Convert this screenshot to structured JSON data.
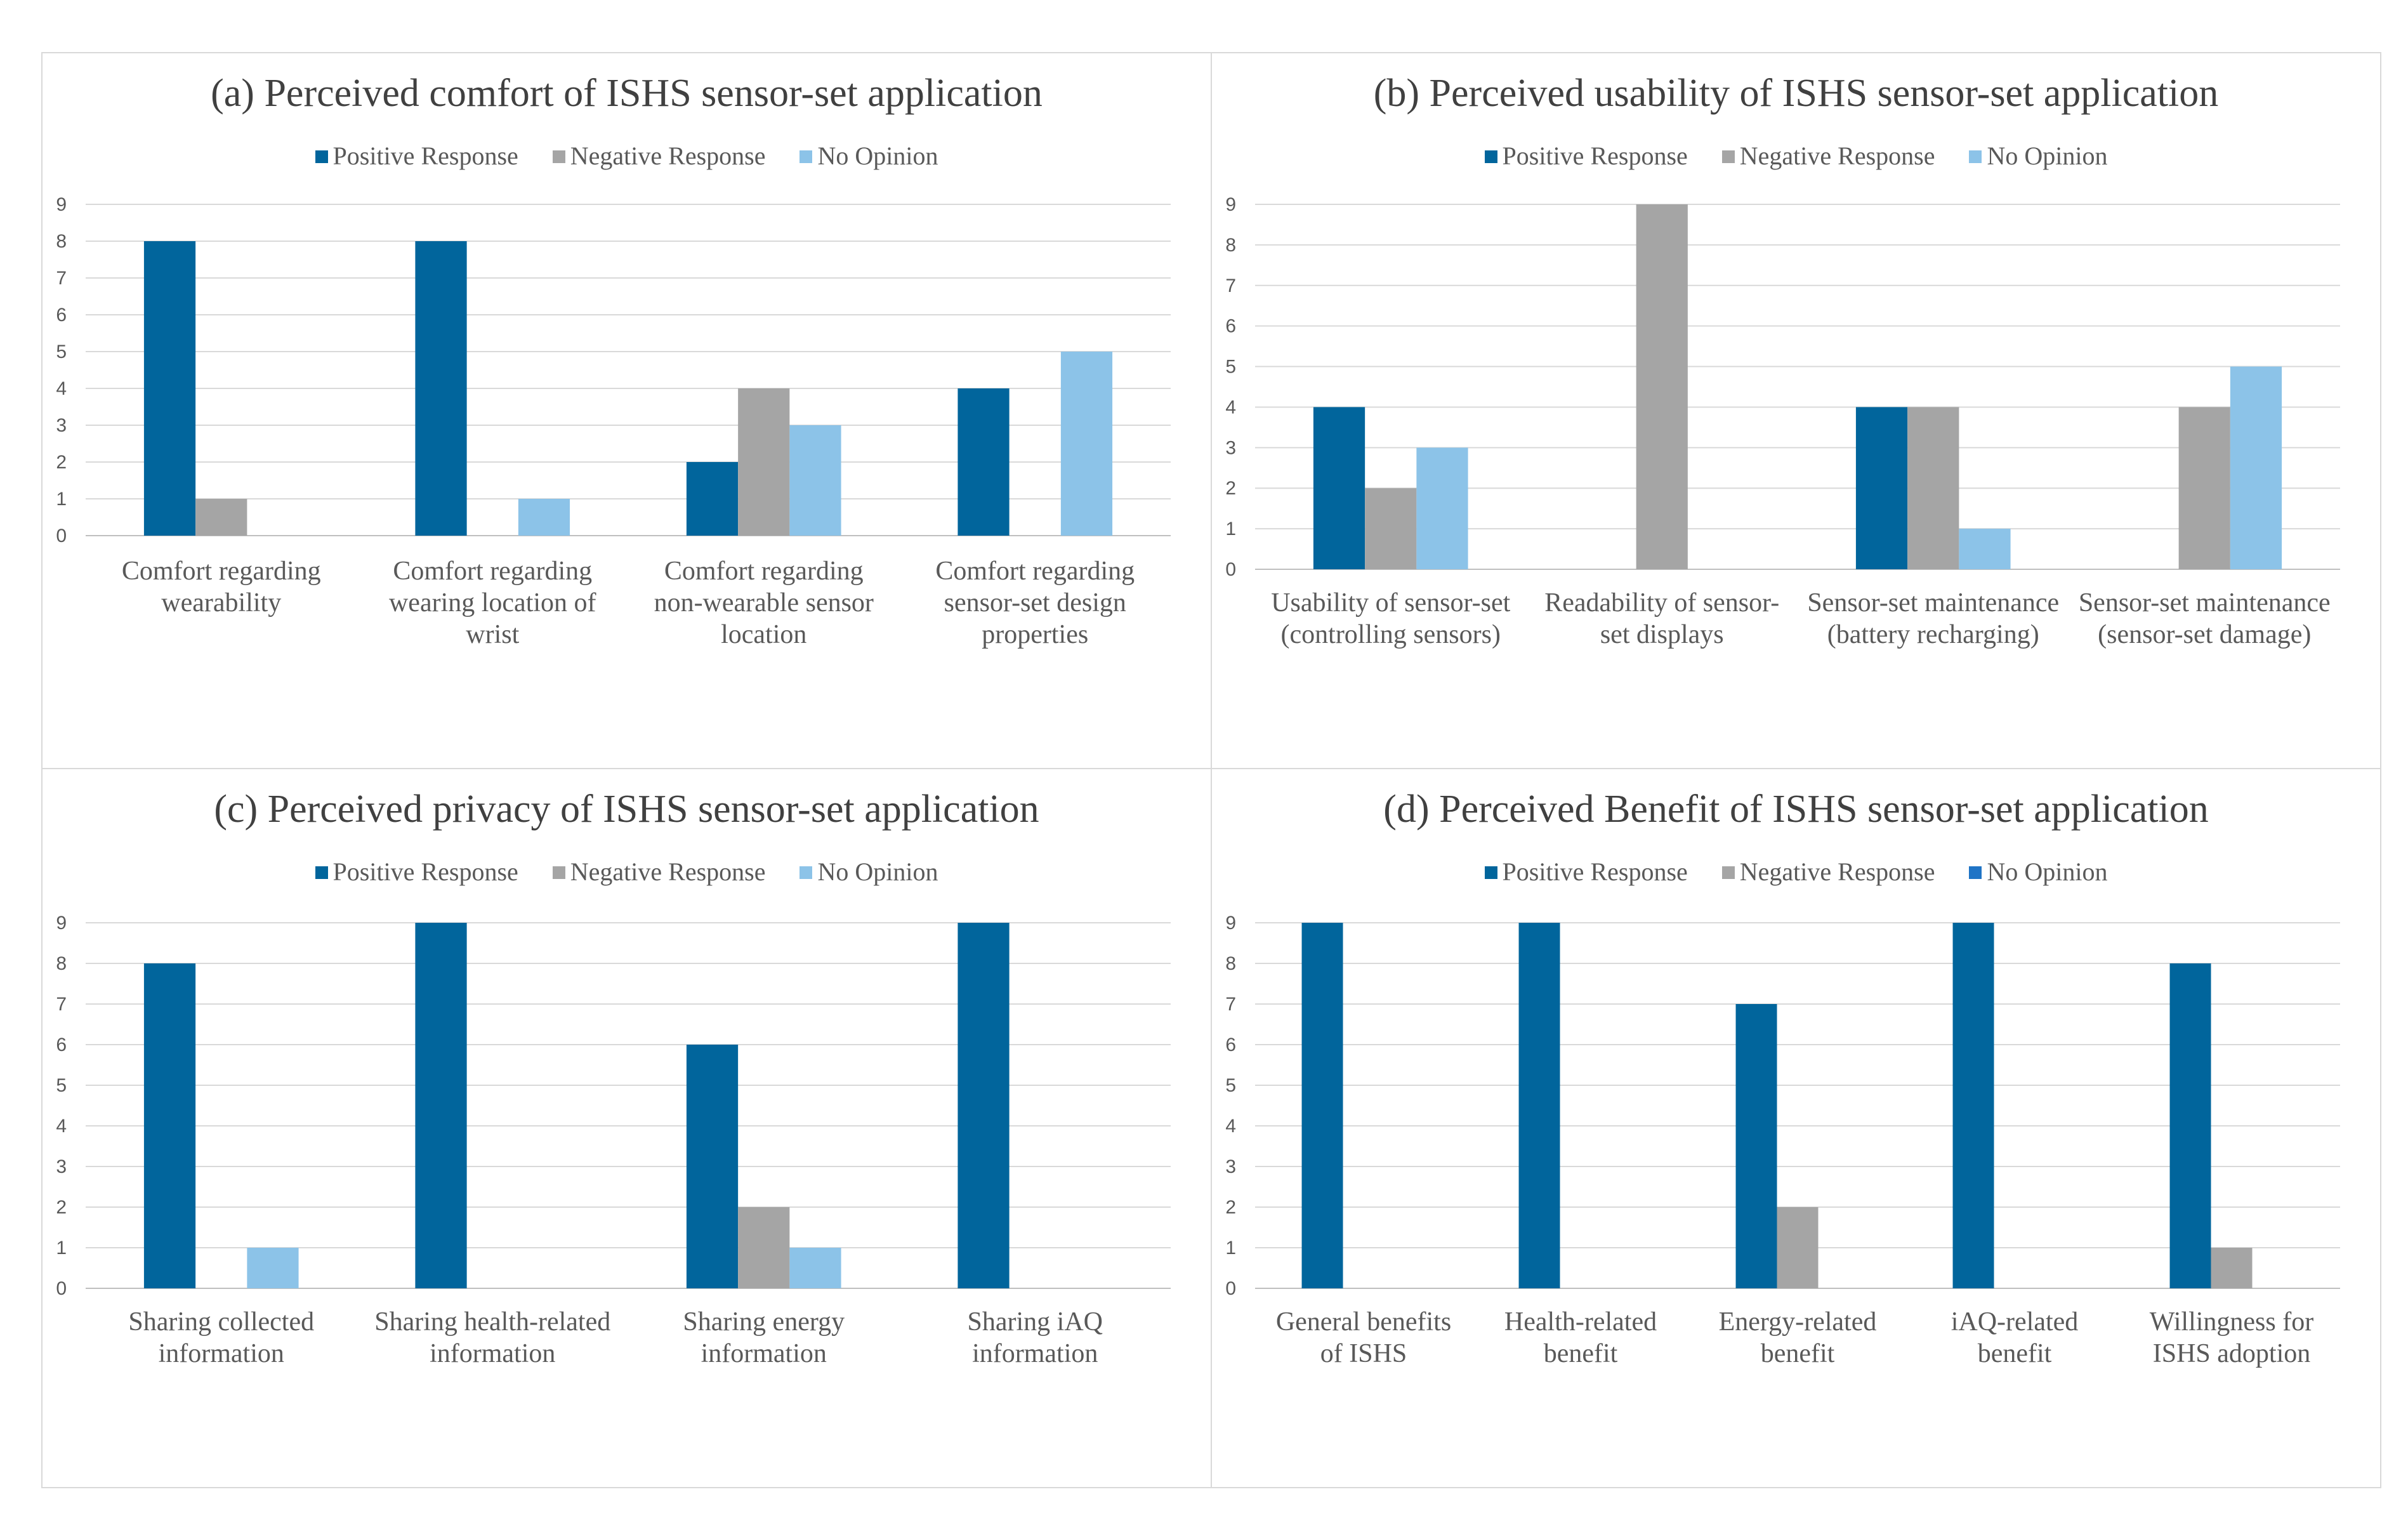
{
  "chart_data": [
    {
      "type": "bar",
      "title": "(a) Perceived comfort of ISHS sensor-set application",
      "legend_position": "top-center",
      "ylim": [
        0,
        9
      ],
      "yticks": [
        0,
        1,
        2,
        3,
        4,
        5,
        6,
        7,
        8,
        9
      ],
      "ytick_labels": [
        "0",
        "1",
        "2",
        "3",
        "4",
        "5",
        "6",
        "7",
        "8",
        "9"
      ],
      "categories": [
        [
          "Comfort regarding",
          "wearability"
        ],
        [
          "Comfort regarding",
          "wearing location of",
          "wrist"
        ],
        [
          "Comfort regarding",
          "non-wearable sensor",
          "location"
        ],
        [
          "Comfort regarding",
          "sensor-set design",
          "properties"
        ]
      ],
      "series": [
        {
          "name": "Positive Response",
          "color": "#01659c",
          "values": [
            8,
            8,
            2,
            4
          ]
        },
        {
          "name": "Negative Response",
          "color": "#a5a5a5",
          "values": [
            1,
            0,
            4,
            0
          ]
        },
        {
          "name": "No Opinion",
          "color": "#8cc3e8",
          "values": [
            0,
            1,
            3,
            5
          ]
        }
      ]
    },
    {
      "type": "bar",
      "title": "(b) Perceived usability of ISHS sensor-set application",
      "legend_position": "top-center",
      "ylim": [
        0,
        9
      ],
      "yticks": [
        0,
        1,
        2,
        3,
        4,
        5,
        6,
        7,
        8,
        9
      ],
      "ytick_labels": [
        "0",
        "1",
        "2",
        "3",
        "4",
        "5",
        "6",
        "7",
        "8",
        "9"
      ],
      "categories": [
        [
          "Usability of sensor-set",
          "(controlling sensors)"
        ],
        [
          "Readability of sensor-",
          "set displays"
        ],
        [
          "Sensor-set maintenance",
          "(battery recharging)"
        ],
        [
          "Sensor-set maintenance",
          "(sensor-set damage)"
        ]
      ],
      "series": [
        {
          "name": "Positive Response",
          "color": "#01659c",
          "values": [
            4,
            0,
            4,
            0
          ]
        },
        {
          "name": "Negative Response",
          "color": "#a5a5a5",
          "values": [
            2,
            9,
            4,
            4
          ]
        },
        {
          "name": "No Opinion",
          "color": "#8cc3e8",
          "values": [
            3,
            0,
            1,
            5
          ]
        }
      ]
    },
    {
      "type": "bar",
      "title": "(c) Perceived privacy of ISHS sensor-set application",
      "legend_position": "top-center",
      "ylim": [
        0,
        9
      ],
      "yticks": [
        0,
        1,
        2,
        3,
        4,
        5,
        6,
        7,
        8,
        9
      ],
      "ytick_labels": [
        "0",
        "1",
        "2",
        "3",
        "4",
        "5",
        "6",
        "7",
        "8",
        "9"
      ],
      "categories": [
        [
          "Sharing collected",
          "information"
        ],
        [
          "Sharing health-related",
          "information"
        ],
        [
          "Sharing energy",
          "information"
        ],
        [
          "Sharing iAQ",
          "information"
        ]
      ],
      "series": [
        {
          "name": "Positive Response",
          "color": "#01659c",
          "values": [
            8,
            9,
            6,
            9
          ]
        },
        {
          "name": "Negative Response",
          "color": "#a5a5a5",
          "values": [
            0,
            0,
            2,
            0
          ]
        },
        {
          "name": "No Opinion",
          "color": "#8cc3e8",
          "values": [
            1,
            0,
            1,
            0
          ]
        }
      ]
    },
    {
      "type": "bar",
      "title": "(d) Perceived Benefit of ISHS sensor-set application",
      "legend_position": "top-center",
      "ylim": [
        0,
        9
      ],
      "yticks": [
        0,
        1,
        2,
        3,
        4,
        5,
        6,
        7,
        8,
        9
      ],
      "ytick_labels": [
        "0",
        "1",
        "2",
        "3",
        "4",
        "5",
        "6",
        "7",
        "8",
        "9"
      ],
      "categories": [
        [
          "General benefits",
          "of ISHS"
        ],
        [
          "Health-related",
          "benefit"
        ],
        [
          "Energy-related",
          "benefit"
        ],
        [
          "iAQ-related",
          "benefit"
        ],
        [
          "Willingness for",
          "ISHS adoption"
        ]
      ],
      "series": [
        {
          "name": "Positive Response",
          "color": "#01659c",
          "values": [
            9,
            9,
            7,
            9,
            8
          ]
        },
        {
          "name": "Negative Response",
          "color": "#a5a5a5",
          "values": [
            0,
            0,
            2,
            0,
            1
          ]
        },
        {
          "name": "No Opinion",
          "color": "#1f74c6",
          "values": [
            0,
            0,
            0,
            0,
            0
          ]
        }
      ]
    }
  ]
}
